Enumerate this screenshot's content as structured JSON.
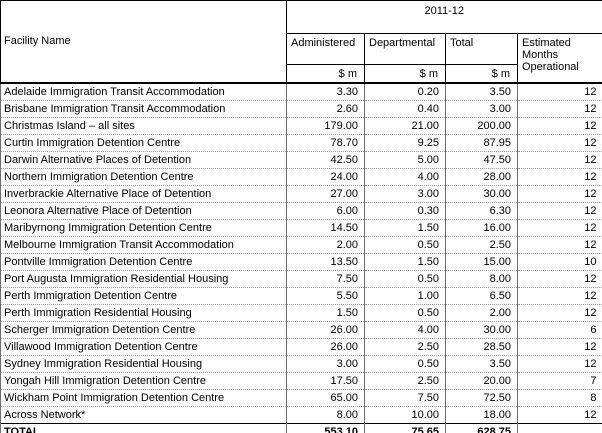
{
  "table": {
    "header": {
      "facility": "Facility Name",
      "year_group": "2011-12",
      "administered": "Administered",
      "departmental": "Departmental",
      "total": "Total",
      "months": "Estimated Months Operational",
      "unit": "$ m"
    },
    "rows": [
      {
        "facility": "Adelaide Immigration Transit Accommodation",
        "administered": "3.30",
        "departmental": "0.20",
        "total": "3.50",
        "months": "12"
      },
      {
        "facility": "Brisbane Immigration Transit Accommodation",
        "administered": "2.60",
        "departmental": "0.40",
        "total": "3.00",
        "months": "12"
      },
      {
        "facility": "Christmas Island – all sites",
        "administered": "179.00",
        "departmental": "21.00",
        "total": "200.00",
        "months": "12"
      },
      {
        "facility": "Curtin Immigration Detention Centre",
        "administered": "78.70",
        "departmental": "9.25",
        "total": "87.95",
        "months": "12"
      },
      {
        "facility": "Darwin Alternative Places of Detention",
        "administered": "42.50",
        "departmental": "5.00",
        "total": "47.50",
        "months": "12"
      },
      {
        "facility": "Northern Immigration Detention Centre",
        "administered": "24.00",
        "departmental": "4.00",
        "total": "28.00",
        "months": "12"
      },
      {
        "facility": "Inverbrackie Alternative Place of Detention",
        "administered": "27.00",
        "departmental": "3.00",
        "total": "30.00",
        "months": "12"
      },
      {
        "facility": "Leonora Alternative Place of Detention",
        "administered": "6.00",
        "departmental": "0.30",
        "total": "6.30",
        "months": "12"
      },
      {
        "facility": "Maribyrnong Immigration Detention Centre",
        "administered": "14.50",
        "departmental": "1.50",
        "total": "16.00",
        "months": "12"
      },
      {
        "facility": "Melbourne Immigration Transit Accommodation",
        "administered": "2.00",
        "departmental": "0.50",
        "total": "2.50",
        "months": "12"
      },
      {
        "facility": "Pontville Immigration Detention Centre",
        "administered": "13.50",
        "departmental": "1.50",
        "total": "15.00",
        "months": "10"
      },
      {
        "facility": "Port Augusta Immigration Residential Housing",
        "administered": "7.50",
        "departmental": "0.50",
        "total": "8.00",
        "months": "12"
      },
      {
        "facility": "Perth Immigration Detention Centre",
        "administered": "5.50",
        "departmental": "1.00",
        "total": "6.50",
        "months": "12"
      },
      {
        "facility": "Perth Immigration Residential Housing",
        "administered": "1.50",
        "departmental": "0.50",
        "total": "2.00",
        "months": "12"
      },
      {
        "facility": "Scherger Immigration Detention Centre",
        "administered": "26.00",
        "departmental": "4.00",
        "total": "30.00",
        "months": "6"
      },
      {
        "facility": "Villawood Immigration Detention Centre",
        "administered": "26.00",
        "departmental": "2.50",
        "total": "28.50",
        "months": "12"
      },
      {
        "facility": "Sydney Immigration Residential Housing",
        "administered": "3.00",
        "departmental": "0.50",
        "total": "3.50",
        "months": "12"
      },
      {
        "facility": "Yongah Hill Immigration Detention Centre",
        "administered": "17.50",
        "departmental": "2.50",
        "total": "20.00",
        "months": "7"
      },
      {
        "facility": "Wickham Point Immigration Detention Centre",
        "administered": "65.00",
        "departmental": "7.50",
        "total": "72.50",
        "months": "8"
      },
      {
        "facility": "Across Network*",
        "administered": "8.00",
        "departmental": "10.00",
        "total": "18.00",
        "months": "12"
      }
    ],
    "total_row": {
      "facility": "TOTAL",
      "administered": "553.10",
      "departmental": "75.65",
      "total": "628.75",
      "months": ""
    }
  },
  "colors": {
    "text": "#000000",
    "background": "#ffffff",
    "border_dark": "#000000",
    "border_light": "#9a9a9a"
  }
}
